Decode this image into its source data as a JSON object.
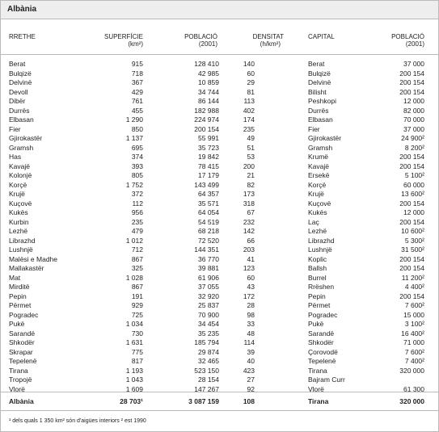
{
  "title": "Albània",
  "table": {
    "header": [
      "RRETHE",
      "SUPERFÍCIE",
      "(km²)",
      "POBLACIÓ",
      "(2001)",
      "DENSITAT",
      "(h/km²)",
      "CAPITAL",
      "POBLACIÓ",
      "(2001)"
    ],
    "rows": [
      [
        "Berat",
        "915",
        "128 410",
        "140",
        "Berat",
        "37 000"
      ],
      [
        "Bulqizë",
        "718",
        "42 985",
        "60",
        "Bulqizë",
        "200 154"
      ],
      [
        "Delvinë",
        "367",
        "10 859",
        "29",
        "Delvinë",
        "200 154"
      ],
      [
        "Devoll",
        "429",
        "34 744",
        "81",
        "Bilisht",
        "200 154"
      ],
      [
        "Dibër",
        "761",
        "86 144",
        "113",
        "Peshkopi",
        "12 000"
      ],
      [
        "Durrës",
        "455",
        "182 988",
        "402",
        "Durrës",
        "82 000"
      ],
      [
        "Elbasan",
        "1 290",
        "224 974",
        "174",
        "Elbasan",
        "70 000"
      ],
      [
        "Fier",
        "850",
        "200 154",
        "235",
        "Fier",
        "37 000"
      ],
      [
        "Gjirokastër",
        "1 137",
        "55 991",
        "49",
        "Gjirokastër",
        "24 900²"
      ],
      [
        "Gramsh",
        "695",
        "35 723",
        "51",
        "Gramsh",
        "8 200²"
      ],
      [
        "Has",
        "374",
        "19 842",
        "53",
        "Krumë",
        "200 154"
      ],
      [
        "Kavajë",
        "393",
        "78 415",
        "200",
        "Kavajë",
        "200 154"
      ],
      [
        "Kolonjë",
        "805",
        "17 179",
        "21",
        "Ersekë",
        "5 100²"
      ],
      [
        "Korçë",
        "1 752",
        "143 499",
        "82",
        "Korçë",
        "60 000"
      ],
      [
        "Krujë",
        "372",
        "64 357",
        "173",
        "Krujë",
        "13 600²"
      ],
      [
        "Kuçovë",
        "112",
        "35 571",
        "318",
        "Kuçovë",
        "200 154"
      ],
      [
        "Kukës",
        "956",
        "64 054",
        "67",
        "Kukës",
        "12 000"
      ],
      [
        "Kurbin",
        "235",
        "54 519",
        "232",
        "Laç",
        "200 154"
      ],
      [
        "Lezhë",
        "479",
        "68 218",
        "142",
        "Lezhë",
        "10 600²"
      ],
      [
        "Librazhd",
        "1 012",
        "72 520",
        "66",
        "Librazhd",
        "5 300²"
      ],
      [
        "Lushnjë",
        "712",
        "144 351",
        "203",
        "Lushnjë",
        "31 500²"
      ],
      [
        "Malësi e Madhe",
        "867",
        "36 770",
        "41",
        "Koplic",
        "200 154"
      ],
      [
        "Mallakastër",
        "325",
        "39 881",
        "123",
        "Ballsh",
        "200 154"
      ],
      [
        "Mat",
        "1 028",
        "61 906",
        "60",
        "Burrel",
        "11 200²"
      ],
      [
        "Mirditë",
        "867",
        "37 055",
        "43",
        "Rrëshen",
        "4 400²"
      ],
      [
        "Pepin",
        "191",
        "32 920",
        "172",
        "Pepin",
        "200 154"
      ],
      [
        "Përmet",
        "929",
        "25 837",
        "28",
        "Përmet",
        "7 600²"
      ],
      [
        "Pogradec",
        "725",
        "70 900",
        "98",
        "Pogradec",
        "15 000"
      ],
      [
        "Pukë",
        "1 034",
        "34 454",
        "33",
        "Pukë",
        "3 100²"
      ],
      [
        "Sarandë",
        "730",
        "35 235",
        "48",
        "Sarandë",
        "16 400²"
      ],
      [
        "Shkodër",
        "1 631",
        "185 794",
        "114",
        "Shkodër",
        "71 000"
      ],
      [
        "Skrapar",
        "775",
        "29 874",
        "39",
        "Çorovodë",
        "7 600²"
      ],
      [
        "Tepelenë",
        "817",
        "32 465",
        "40",
        "Tepelenë",
        "7 400²"
      ],
      [
        "Tirana",
        "1 193",
        "523 150",
        "423",
        "Tirana",
        "320 000"
      ],
      [
        "Tropojë",
        "1 043",
        "28 154",
        "27",
        "Bajram Curr",
        null
      ],
      [
        "Vlorë",
        "1 609",
        "147 267",
        "92",
        "Vlorë",
        "61 300"
      ]
    ],
    "total": [
      "Albània",
      "28 703¹",
      "3 087 159",
      "108",
      "Tirana",
      "320 000"
    ]
  },
  "footnote": "¹ dels quals 1 350 km² són d'aigües interiors  ² est 1990"
}
